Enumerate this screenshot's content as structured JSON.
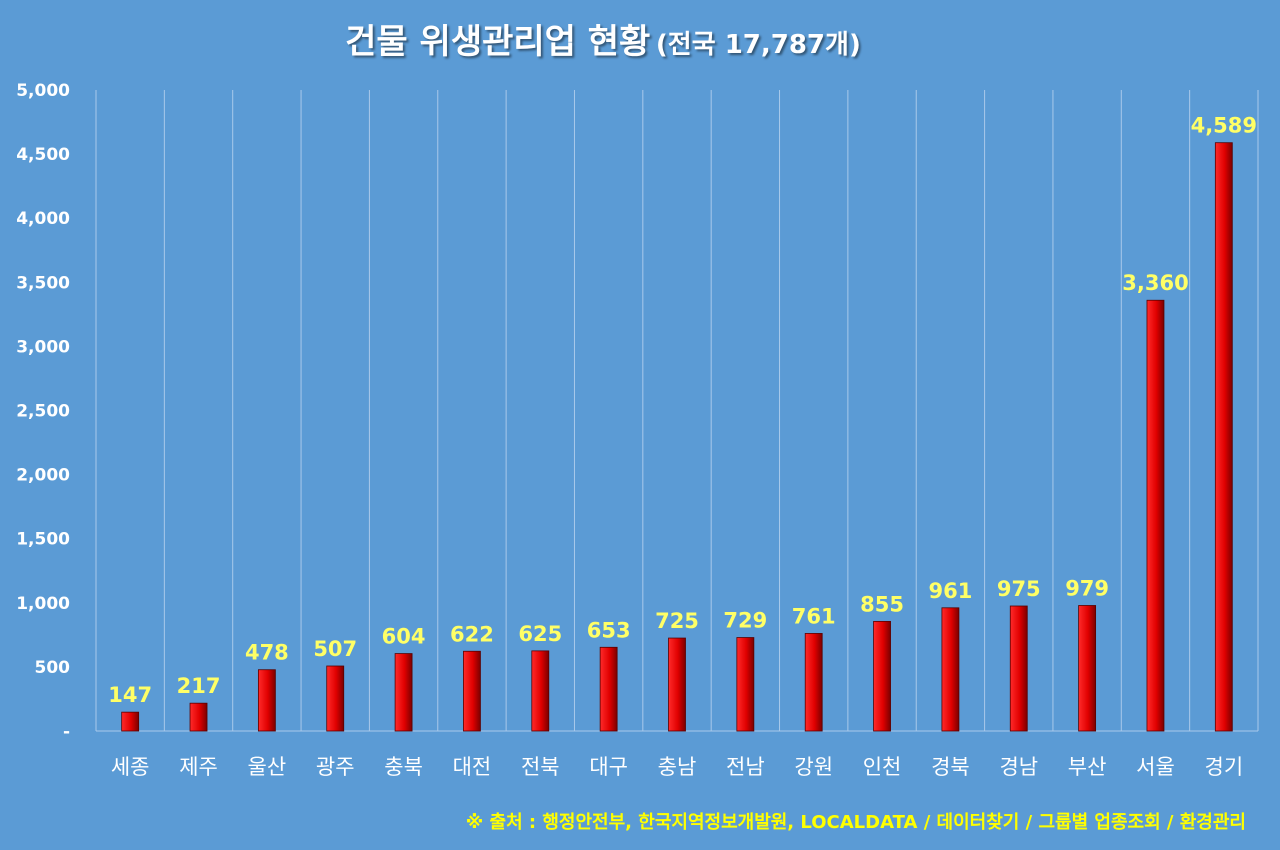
{
  "chart_data": {
    "type": "bar",
    "title": "건물 위생관리업 현황",
    "subtitle": "(전국 17,787개)",
    "categories": [
      "세종",
      "제주",
      "울산",
      "광주",
      "충북",
      "대전",
      "전북",
      "대구",
      "충남",
      "전남",
      "강원",
      "인천",
      "경북",
      "경남",
      "부산",
      "서울",
      "경기"
    ],
    "values": [
      147,
      217,
      478,
      507,
      604,
      622,
      625,
      653,
      725,
      729,
      761,
      855,
      961,
      975,
      979,
      3360,
      4589
    ],
    "value_labels": [
      "147",
      "217",
      "478",
      "507",
      "604",
      "622",
      "625",
      "653",
      "725",
      "729",
      "761",
      "855",
      "961",
      "975",
      "979",
      "3,360",
      "4,589"
    ],
    "ylim": [
      0,
      5000
    ],
    "yticks": [
      0,
      500,
      1000,
      1500,
      2000,
      2500,
      3000,
      3500,
      4000,
      4500,
      5000
    ],
    "ytick_labels": [
      "-",
      "500",
      "1,000",
      "1,500",
      "2,000",
      "2,500",
      "3,000",
      "3,500",
      "4,000",
      "4,500",
      "5,000"
    ],
    "xlabel": "",
    "ylabel": "",
    "grid": "vertical",
    "source": "※ 출처 : 행정안전부, 한국지역정보개발원, LOCALDATA / 데이터찾기 / 그룹별 업종조회 / 환경관리"
  },
  "colors": {
    "background": "#5b9bd5",
    "bar": "#e00000",
    "bar_dark": "#7a0000",
    "data_label": "#ffff66",
    "source_text": "#ffff00",
    "text": "#ffffff"
  }
}
